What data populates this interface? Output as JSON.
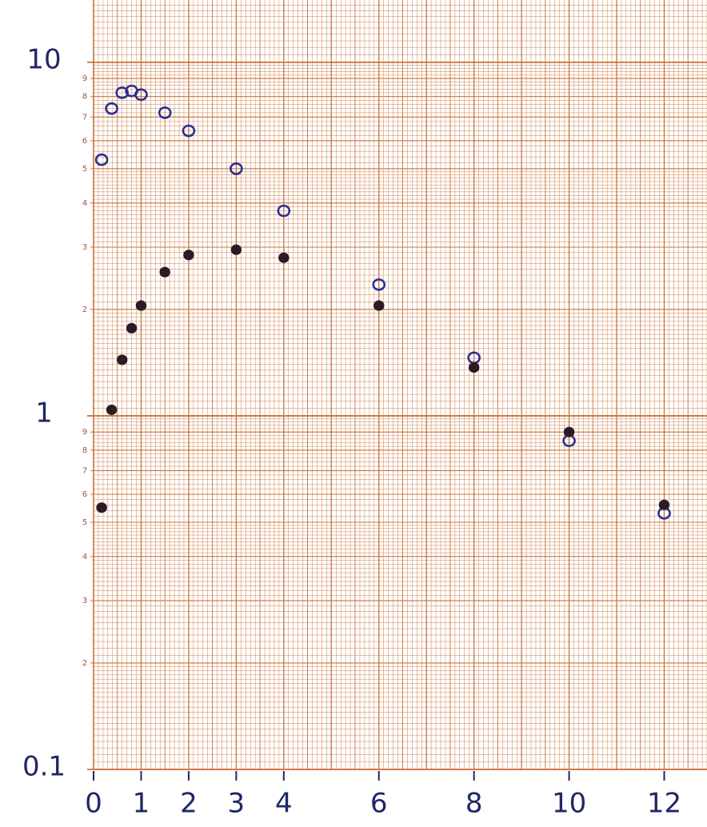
{
  "chart_data": {
    "type": "scatter",
    "log_y": true,
    "grid": true,
    "xlim": [
      0,
      12.9
    ],
    "ylim": [
      0.1,
      15
    ],
    "xticks": [
      0,
      1,
      2,
      3,
      4,
      6,
      8,
      10,
      12
    ],
    "yticks": [
      0.1,
      1,
      10
    ],
    "minor_yticks": [
      {
        "value": 0.2,
        "label": "2"
      },
      {
        "value": 0.3,
        "label": "3"
      },
      {
        "value": 0.4,
        "label": "4"
      },
      {
        "value": 0.5,
        "label": "5"
      },
      {
        "value": 0.6,
        "label": "6"
      },
      {
        "value": 0.7,
        "label": "7"
      },
      {
        "value": 0.8,
        "label": "8"
      },
      {
        "value": 0.9,
        "label": "9"
      },
      {
        "value": 2,
        "label": "2"
      },
      {
        "value": 3,
        "label": "3"
      },
      {
        "value": 4,
        "label": "4"
      },
      {
        "value": 5,
        "label": "5"
      },
      {
        "value": 6,
        "label": "6"
      },
      {
        "value": 7,
        "label": "7"
      },
      {
        "value": 8,
        "label": "8"
      },
      {
        "value": 9,
        "label": "9"
      }
    ],
    "grid_color": "#c8743a",
    "series": [
      {
        "marker": "open",
        "color": "#2b2f8f",
        "x": [
          0.17,
          0.38,
          0.6,
          0.8,
          1,
          1.5,
          2,
          3,
          4,
          6,
          8,
          10,
          12
        ],
        "values": [
          5.3,
          7.4,
          8.2,
          8.3,
          8.1,
          7.2,
          6.4,
          5.0,
          3.8,
          2.35,
          1.46,
          0.85,
          0.53
        ]
      },
      {
        "marker": "filled",
        "color": "#2a1c22",
        "x": [
          0.17,
          0.38,
          0.6,
          0.8,
          1,
          1.5,
          2,
          3,
          4,
          6,
          8,
          10,
          12
        ],
        "values": [
          0.55,
          1.04,
          1.44,
          1.77,
          2.05,
          2.55,
          2.85,
          2.95,
          2.8,
          2.05,
          1.37,
          0.9,
          0.56
        ]
      }
    ]
  }
}
